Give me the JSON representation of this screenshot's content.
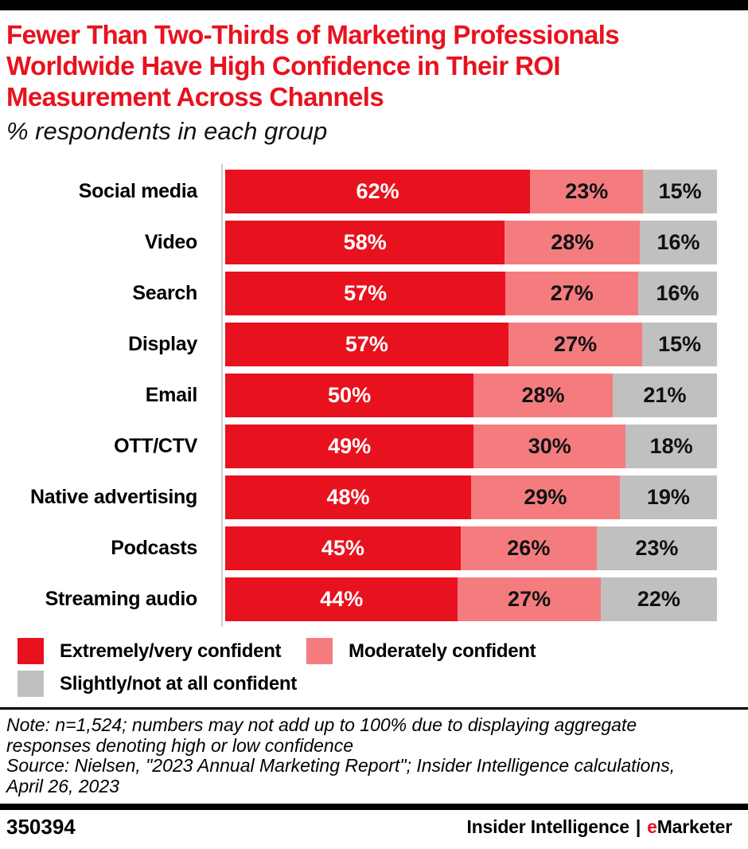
{
  "header": {
    "title_lines": [
      "Fewer Than Two-Thirds of Marketing Professionals",
      "Worldwide Have High Confidence in Their ROI",
      "Measurement Across Channels"
    ],
    "subtitle": "% respondents in each group"
  },
  "chart_data": {
    "type": "bar",
    "orientation": "horizontal",
    "stacked": true,
    "normalized_to_full_width": true,
    "grid": false,
    "legend_position": "bottom",
    "value_suffix": "%",
    "title": "Fewer Than Two-Thirds of Marketing Professionals Worldwide Have High Confidence in Their ROI Measurement Across Channels",
    "subtitle": "% respondents in each group",
    "categories": [
      "Social media",
      "Video",
      "Search",
      "Display",
      "Email",
      "OTT/CTV",
      "Native advertising",
      "Podcasts",
      "Streaming audio"
    ],
    "series": [
      {
        "name": "Extremely/very confident",
        "color": "#E8121E",
        "text_color": "#ffffff",
        "values": [
          62,
          58,
          57,
          57,
          50,
          49,
          48,
          45,
          44
        ]
      },
      {
        "name": "Moderately confident",
        "color": "#F47C7F",
        "text_color": "#111111",
        "values": [
          23,
          28,
          27,
          27,
          28,
          30,
          29,
          26,
          27
        ]
      },
      {
        "name": "Slightly/not at all confident",
        "color": "#C1C0C0",
        "text_color": "#111111",
        "values": [
          15,
          16,
          16,
          15,
          21,
          18,
          19,
          23,
          22
        ]
      }
    ]
  },
  "legend": {
    "items": [
      {
        "label": "Extremely/very confident",
        "color": "#E8121E"
      },
      {
        "label": "Moderately confident",
        "color": "#F47C7F"
      },
      {
        "label": "Slightly/not at all confident",
        "color": "#C1C0C0"
      }
    ]
  },
  "notes": {
    "note_lines": [
      "Note: n=1,524; numbers may not add up to 100% due to displaying aggregate",
      "responses denoting high or low confidence",
      "Source: Nielsen, \"2023 Annual Marketing Report\"; Insider Intelligence calculations,",
      "April 26, 2023"
    ]
  },
  "footer": {
    "chart_id": "350394",
    "brand_left": "Insider Intelligence",
    "brand_separator": "|",
    "brand_e": "e",
    "brand_rest": "Marketer"
  },
  "colors": {
    "accent_red": "#E8121E",
    "pink": "#F47C7F",
    "gray": "#C1C0C0",
    "bar_black": "#000000",
    "axis_gray": "#cccccc"
  }
}
